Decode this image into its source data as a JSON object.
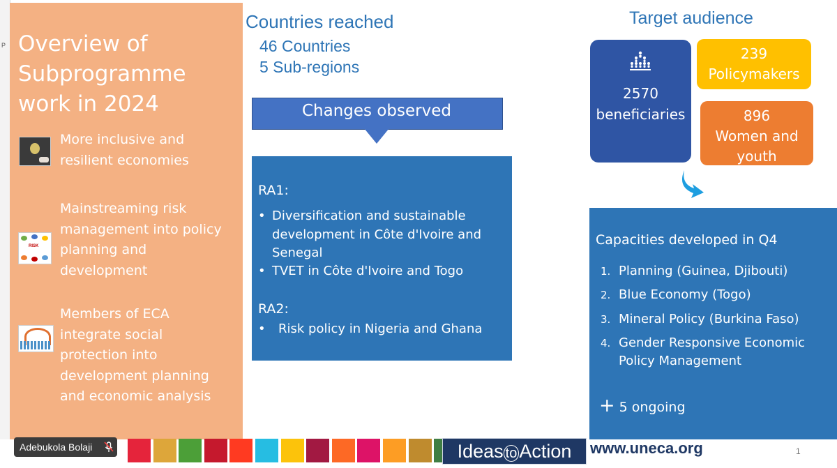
{
  "overview": {
    "title_lines": [
      "Overview of",
      "Subprogramme",
      "work in 2024"
    ],
    "items": [
      {
        "lines": [
          "More inclusive and",
          "resilient economies"
        ],
        "thumb_icon": "lightbulb-hand-image"
      },
      {
        "lines": [
          "Mainstreaming risk",
          "management into policy",
          "planning and",
          "development"
        ],
        "thumb_icon": "risk-management-diagram-image",
        "thumb_text": "RISK"
      },
      {
        "lines": [
          "Members of ECA",
          "integrate social",
          "protection into",
          "development planning",
          "and economic analysis"
        ],
        "thumb_icon": "social-protection-people-image"
      }
    ]
  },
  "countries": {
    "title": "Countries reached",
    "line1": "46 Countries",
    "line2": "5 Sub-regions"
  },
  "changes": {
    "label": "Changes observed",
    "ra1_title": "RA1:",
    "ra1_items": [
      [
        "Diversification and sustainable",
        "development in Côte d'Ivoire and",
        "Senegal"
      ],
      [
        "TVET in Côte d'Ivoire and Togo"
      ]
    ],
    "ra2_title": "RA2:",
    "ra2_items": [
      [
        "Risk policy in Nigeria and Ghana"
      ]
    ],
    "bullet": "•"
  },
  "target": {
    "title": "Target audience",
    "beneficiaries_num": "2570",
    "beneficiaries_label": "beneficiaries",
    "policymakers_num": "239",
    "policymakers_label": "Policymakers",
    "women_num": "896",
    "women_label_1": "Women and",
    "women_label_2": "youth"
  },
  "capacities": {
    "title": "Capacities developed in Q4",
    "items": [
      {
        "num": "1.",
        "lines": [
          "Planning (Guinea, Djibouti)"
        ]
      },
      {
        "num": "2.",
        "lines": [
          "Blue Economy (Togo)"
        ]
      },
      {
        "num": "3.",
        "lines": [
          "Mineral Policy (Burkina Faso)"
        ]
      },
      {
        "num": "4.",
        "lines": [
          "Gender Responsive Economic",
          "Policy Management"
        ]
      }
    ],
    "ongoing_plus": "+",
    "ongoing_text": "5 ongoing"
  },
  "footer": {
    "ideas_prefix": "Ideas",
    "ideas_mid": "to",
    "ideas_suffix": "Action",
    "website": "www.uneca.org",
    "page_number": "1",
    "sdg_colors": [
      "#e5243b",
      "#dda63a",
      "#4c9f38",
      "#c5192d",
      "#ff3a21",
      "#26bde2",
      "#fcc30b",
      "#a21942",
      "#fd6925",
      "#dd1367",
      "#fd9d24",
      "#bf8b2e",
      "#3f7e44",
      "#0a97d9",
      "#56c02b",
      "#00689d",
      "#19486a"
    ]
  },
  "participant": {
    "name": "Adebukola Bolaji",
    "mic_icon": "mic-muted-icon"
  },
  "edge": {
    "glyph": "P"
  },
  "colors": {
    "left_panel": "#f4b183",
    "blue_text": "#2e75b6",
    "box_blue": "#2e75b6",
    "benef_blue": "#2f55a4",
    "yellow": "#ffc000",
    "orange": "#ed7d31"
  }
}
